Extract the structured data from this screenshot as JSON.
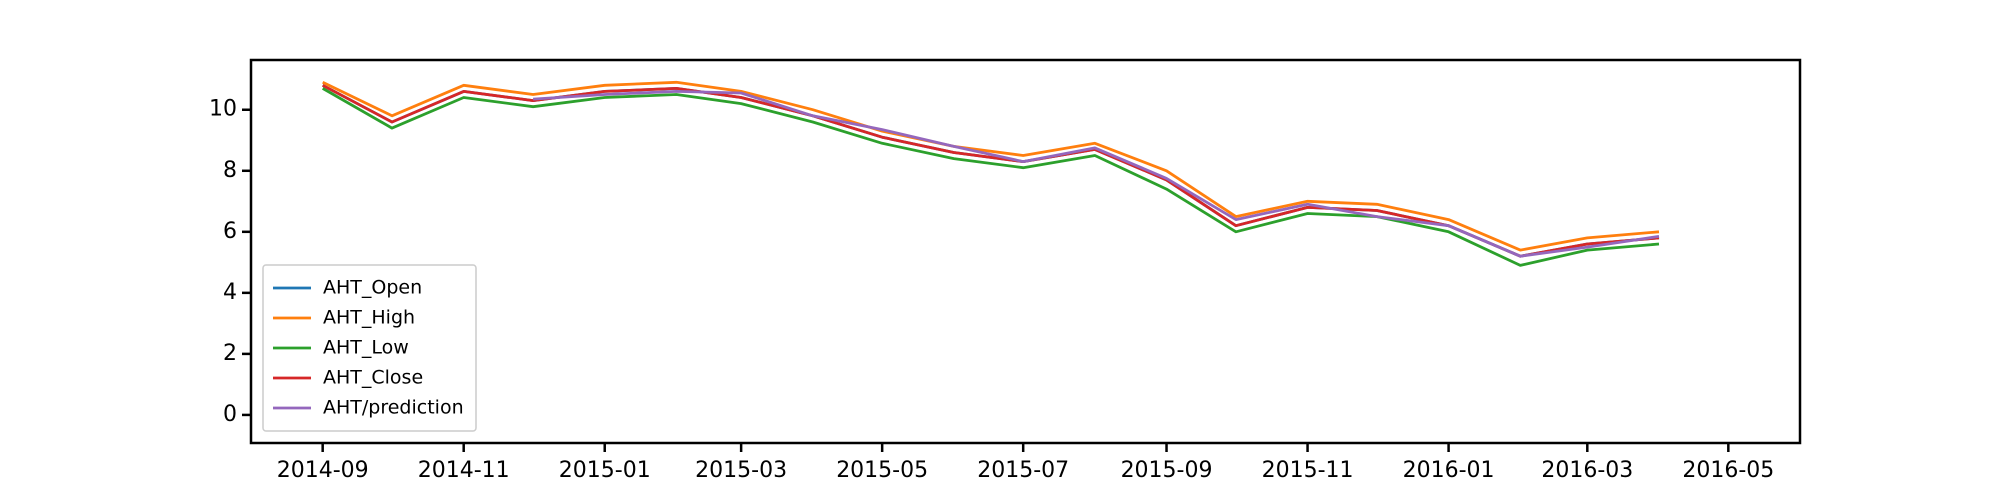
{
  "chart_data": {
    "type": "line",
    "x": [
      "2014-09",
      "2014-10",
      "2014-11",
      "2014-12",
      "2015-01",
      "2015-02",
      "2015-03",
      "2015-04",
      "2015-05",
      "2015-06",
      "2015-07",
      "2015-08",
      "2015-09",
      "2015-10",
      "2015-11",
      "2015-12",
      "2016-01",
      "2016-02",
      "2016-03",
      "2016-04"
    ],
    "series": [
      {
        "name": "AHT_Open",
        "color": "#1f77b4",
        "values": [
          10.8,
          9.6,
          10.6,
          10.3,
          10.6,
          10.7,
          10.4,
          9.8,
          9.1,
          8.6,
          8.3,
          8.7,
          7.7,
          6.2,
          6.8,
          6.7,
          6.2,
          5.2,
          5.6,
          5.8
        ]
      },
      {
        "name": "AHT_High",
        "color": "#ff7f0e",
        "values": [
          10.9,
          9.8,
          10.8,
          10.5,
          10.8,
          10.9,
          10.6,
          10.0,
          9.3,
          8.8,
          8.5,
          8.9,
          8.0,
          6.5,
          7.0,
          6.9,
          6.4,
          5.4,
          5.8,
          6.0
        ]
      },
      {
        "name": "AHT_Low",
        "color": "#2ca02c",
        "values": [
          10.7,
          9.4,
          10.4,
          10.1,
          10.4,
          10.5,
          10.2,
          9.6,
          8.9,
          8.4,
          8.1,
          8.5,
          7.4,
          6.0,
          6.6,
          6.5,
          6.0,
          4.9,
          5.4,
          5.6
        ]
      },
      {
        "name": "AHT_Close",
        "color": "#d62728",
        "values": [
          10.8,
          9.6,
          10.6,
          10.3,
          10.6,
          10.7,
          10.4,
          9.8,
          9.1,
          8.6,
          8.3,
          8.7,
          7.7,
          6.2,
          6.8,
          6.7,
          6.2,
          5.2,
          5.6,
          5.8
        ]
      },
      {
        "name": "AHT/prediction",
        "color": "#9467bd",
        "values": [
          null,
          null,
          null,
          10.35,
          10.5,
          10.6,
          10.55,
          9.8,
          9.35,
          8.8,
          8.3,
          8.75,
          7.75,
          6.4,
          6.9,
          6.5,
          6.2,
          5.2,
          5.5,
          5.85
        ]
      }
    ],
    "xlim": [
      "2014-08",
      "2016-06"
    ],
    "xticks": [
      "2014-09",
      "2014-11",
      "2015-01",
      "2015-03",
      "2015-05",
      "2015-07",
      "2015-09",
      "2015-11",
      "2016-01",
      "2016-03",
      "2016-05"
    ],
    "ylim": [
      -0.92,
      11.63
    ],
    "yticks": [
      0,
      2,
      4,
      6,
      8,
      10
    ],
    "legend": "lower left"
  }
}
